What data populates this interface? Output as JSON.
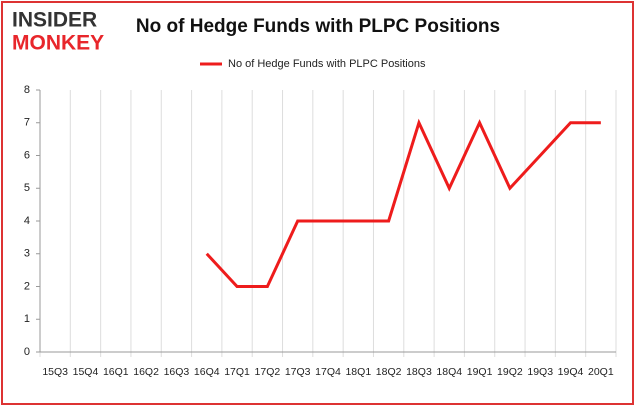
{
  "logo": [
    "INSIDER",
    "MONKEY"
  ],
  "chart_data": {
    "type": "line",
    "title": "No of Hedge Funds with PLPC Positions",
    "categories": [
      "15Q3",
      "15Q4",
      "16Q1",
      "16Q2",
      "16Q3",
      "16Q4",
      "17Q1",
      "17Q2",
      "17Q3",
      "17Q4",
      "18Q1",
      "18Q2",
      "18Q3",
      "18Q4",
      "19Q1",
      "19Q2",
      "19Q3",
      "19Q4",
      "20Q1"
    ],
    "series": [
      {
        "name": "No of Hedge Funds with PLPC Positions",
        "color": "#ee1c1c",
        "values": [
          null,
          null,
          null,
          null,
          null,
          3,
          2,
          2,
          4,
          4,
          4,
          4,
          7,
          5,
          7,
          5,
          6,
          7,
          7
        ]
      }
    ],
    "ylim": [
      0,
      8
    ],
    "yticks": [
      0,
      1,
      2,
      3,
      4,
      5,
      6,
      7,
      8
    ],
    "legend": "top"
  }
}
